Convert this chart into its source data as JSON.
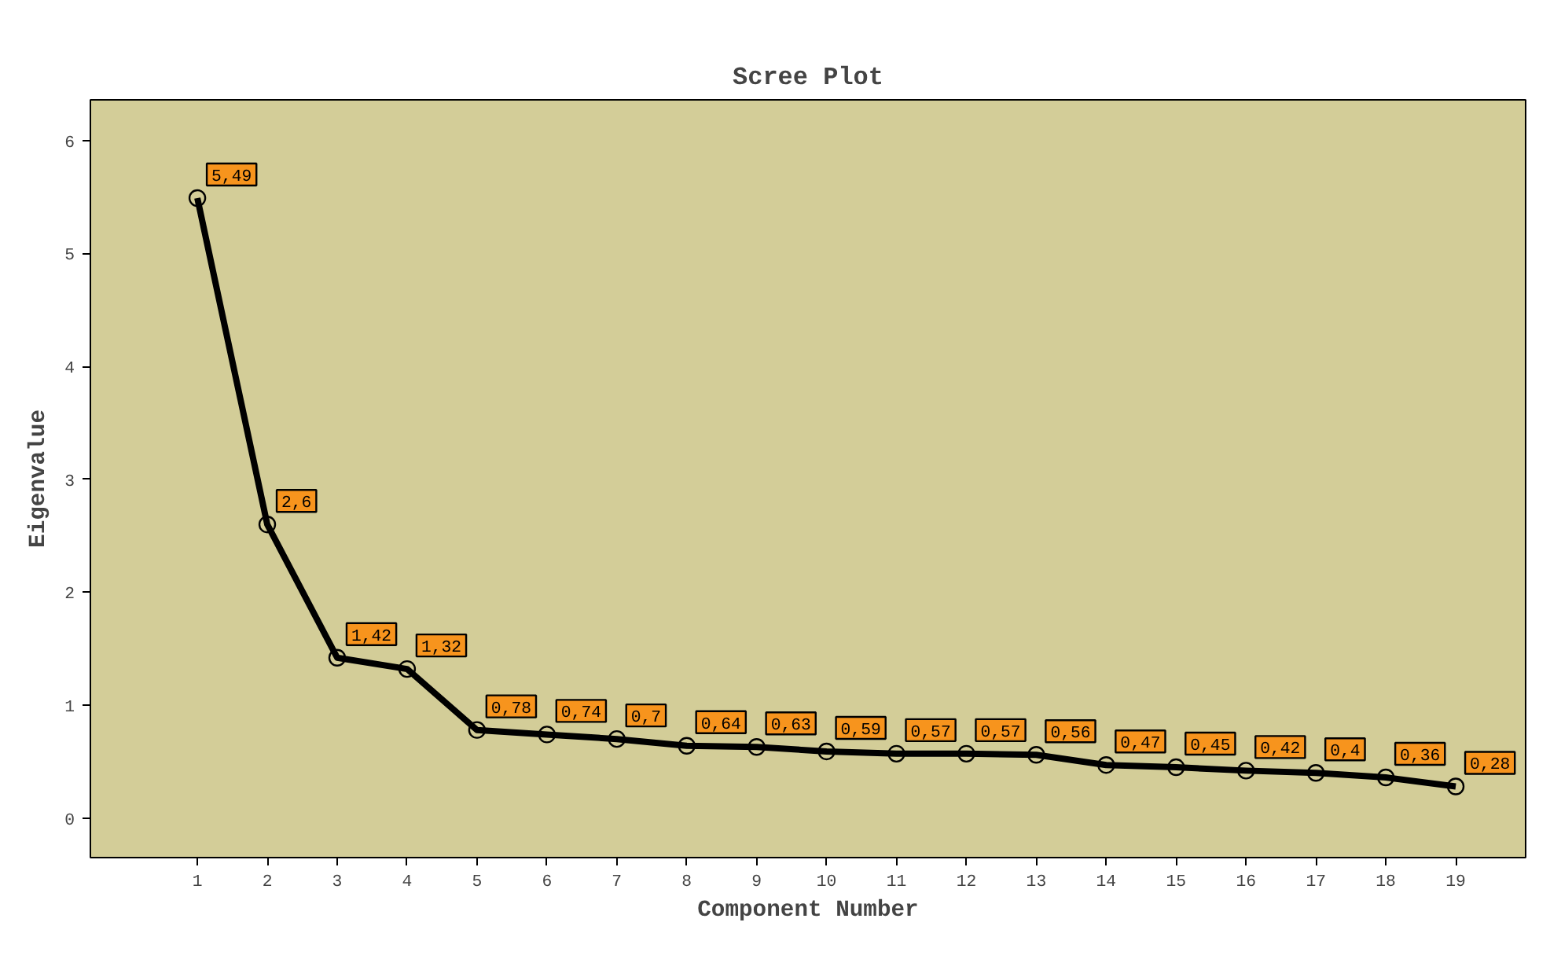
{
  "chart_data": {
    "type": "line",
    "title": "Scree Plot",
    "xlabel": "Component Number",
    "ylabel": "Eigenvalue",
    "x": [
      1,
      2,
      3,
      4,
      5,
      6,
      7,
      8,
      9,
      10,
      11,
      12,
      13,
      14,
      15,
      16,
      17,
      18,
      19
    ],
    "series": [
      {
        "color": "#000000",
        "values": [
          5.49,
          2.6,
          1.42,
          1.32,
          0.78,
          0.74,
          0.7,
          0.64,
          0.63,
          0.59,
          0.57,
          0.57,
          0.56,
          0.47,
          0.45,
          0.42,
          0.4,
          0.36,
          0.28
        ],
        "value_labels": [
          "5,49",
          "2,6",
          "1,42",
          "1,32",
          "0,78",
          "0,74",
          "0,7",
          "0,64",
          "0,63",
          "0,59",
          "0,57",
          "0,57",
          "0,56",
          "0,47",
          "0,45",
          "0,42",
          "0,4",
          "0,36",
          "0,28"
        ]
      }
    ],
    "xlim": [
      -0.53,
      20.0
    ],
    "ylim": [
      -0.35,
      6.36
    ],
    "xticks": [
      1,
      2,
      3,
      4,
      5,
      6,
      7,
      8,
      9,
      10,
      11,
      12,
      13,
      14,
      15,
      16,
      17,
      18,
      19
    ],
    "yticks": [
      0,
      1,
      2,
      3,
      4,
      5,
      6
    ],
    "grid": false,
    "marker": "circle",
    "line_style": "solid"
  }
}
